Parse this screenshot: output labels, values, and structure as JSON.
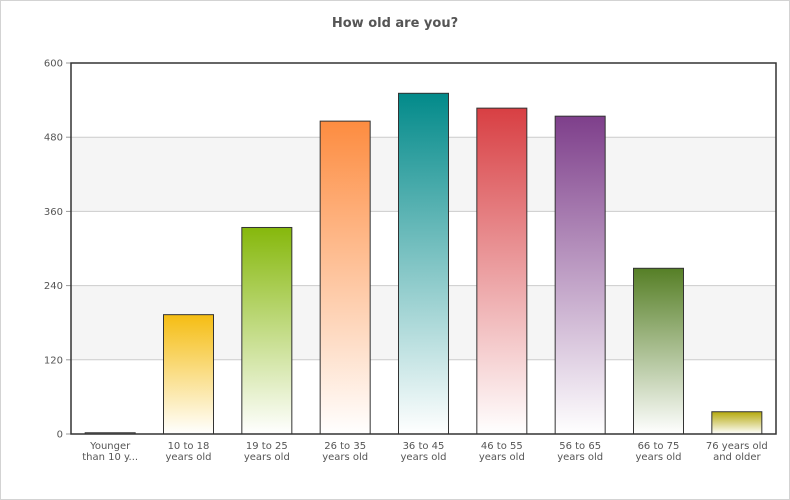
{
  "chart_data": {
    "type": "bar",
    "title": "How old are you?",
    "xlabel": "",
    "ylabel": "",
    "ylim": [
      0,
      600
    ],
    "yticks": [
      0,
      120,
      240,
      360,
      480,
      600
    ],
    "grid": true,
    "categories": [
      [
        "Younger",
        "than 10 y..."
      ],
      [
        "10 to 18",
        "years old"
      ],
      [
        "19 to 25",
        "years old"
      ],
      [
        "26 to 35",
        "years old"
      ],
      [
        "36 to 45",
        "years old"
      ],
      [
        "46 to 55",
        "years old"
      ],
      [
        "56 to 65",
        "years old"
      ],
      [
        "66 to 75",
        "years old"
      ],
      [
        "76 years old",
        "and older"
      ]
    ],
    "values": [
      2,
      193,
      334,
      506,
      551,
      527,
      514,
      268,
      36
    ],
    "colors": [
      "#7a7a7a",
      "#f5bd12",
      "#86b80c",
      "#fd8c40",
      "#028a8a",
      "#d83f43",
      "#7e3f8b",
      "#567f26",
      "#b5a90c"
    ]
  }
}
